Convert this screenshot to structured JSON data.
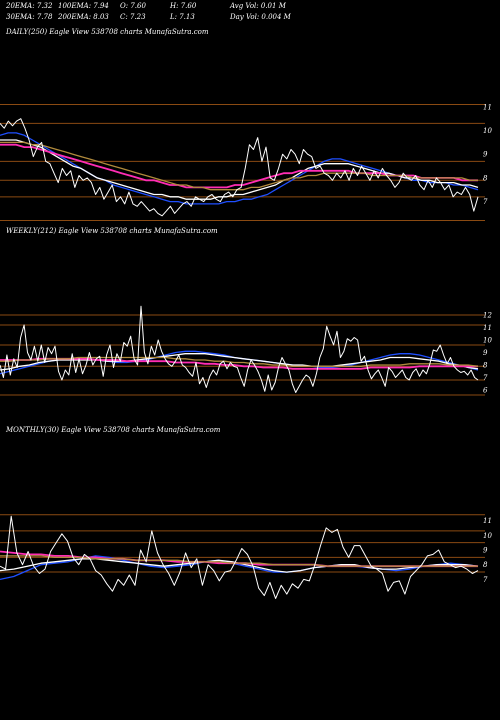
{
  "header": {
    "row1": [
      "20EMA: 7.32",
      "100EMA: 7.94",
      "O: 7.60",
      "H: 7.60",
      "Avg Vol: 0.01 M"
    ],
    "row2": [
      "30EMA: 7.78",
      "200EMA: 8.03",
      "C: 7.23",
      "L: 7.13",
      "Day Vol: 0.004  M"
    ]
  },
  "chart_data": [
    {
      "type": "line",
      "label": "DAILY(250) Eagle  View  538708  charts MunafaSutra.com",
      "ylim": [
        5.8,
        11.5
      ],
      "yticks": [
        7,
        8,
        9,
        10,
        11
      ],
      "grid_levels": [
        6.2,
        7.2,
        7.9,
        8.7,
        10.3,
        11.1
      ],
      "series": [
        {
          "color": "#ffffff",
          "values": [
            10.3,
            10.1,
            10.4,
            10.2,
            10.4,
            10.5,
            10.1,
            9.6,
            8.9,
            9.3,
            9.5,
            8.7,
            8.6,
            8.2,
            7.8,
            8.4,
            8.1,
            8.3,
            7.6,
            8.1,
            7.9,
            8.0,
            7.8,
            7.3,
            7.6,
            7.1,
            7.4,
            7.7,
            7.0,
            7.2,
            6.9,
            7.4,
            6.9,
            6.8,
            7.0,
            6.8,
            6.6,
            6.7,
            6.5,
            6.4,
            6.6,
            6.8,
            6.5,
            6.7,
            6.9,
            7.0,
            6.8,
            7.2,
            7.1,
            7.0,
            7.2,
            7.3,
            7.1,
            7.0,
            7.3,
            7.4,
            7.2,
            7.5,
            7.6,
            8.4,
            9.4,
            9.2,
            9.7,
            8.7,
            9.3,
            8.0,
            7.9,
            8.4,
            9.0,
            8.8,
            9.2,
            9.0,
            8.6,
            9.2,
            9.0,
            8.9,
            8.4,
            8.5,
            8.2,
            8.1,
            7.9,
            8.2,
            8.0,
            8.3,
            7.9,
            8.4,
            8.1,
            8.5,
            8.2,
            7.9,
            8.3,
            8.0,
            8.4,
            8.1,
            7.9,
            7.6,
            7.8,
            8.2,
            8.0,
            7.9,
            8.1,
            7.7,
            7.5,
            7.9,
            7.6,
            8.0,
            7.8,
            7.5,
            7.7,
            7.2,
            7.4,
            7.3,
            7.6,
            7.3,
            6.6,
            7.2
          ]
        },
        {
          "color": "#1f4fff",
          "values": [
            9.8,
            9.9,
            9.9,
            9.8,
            9.6,
            9.4,
            9.2,
            9.0,
            8.8,
            8.6,
            8.4,
            8.2,
            8.0,
            7.9,
            7.7,
            7.6,
            7.5,
            7.4,
            7.3,
            7.2,
            7.1,
            7.0,
            7.0,
            6.9,
            6.9,
            6.9,
            6.9,
            6.9,
            7.0,
            7.0,
            7.1,
            7.1,
            7.2,
            7.3,
            7.5,
            7.7,
            7.9,
            8.1,
            8.3,
            8.5,
            8.7,
            8.8,
            8.8,
            8.7,
            8.6,
            8.5,
            8.4,
            8.3,
            8.2,
            8.1,
            8.0,
            7.9,
            7.9,
            7.8,
            7.8,
            7.8,
            7.7,
            7.7,
            7.6,
            7.5
          ]
        },
        {
          "color": "#ffffff",
          "values": [
            9.6,
            9.6,
            9.6,
            9.5,
            9.4,
            9.3,
            9.1,
            8.9,
            8.7,
            8.5,
            8.4,
            8.2,
            8.0,
            7.9,
            7.8,
            7.7,
            7.6,
            7.5,
            7.4,
            7.3,
            7.3,
            7.2,
            7.2,
            7.1,
            7.1,
            7.1,
            7.1,
            7.2,
            7.2,
            7.3,
            7.3,
            7.4,
            7.5,
            7.6,
            7.7,
            7.9,
            8.0,
            8.2,
            8.4,
            8.5,
            8.6,
            8.6,
            8.6,
            8.6,
            8.5,
            8.4,
            8.3,
            8.2,
            8.2,
            8.1,
            8.0,
            8.0,
            7.9,
            7.9,
            7.8,
            7.8,
            7.8,
            7.7,
            7.7,
            7.6
          ]
        },
        {
          "color": "#ff2db4",
          "values": [
            9.4,
            9.4,
            9.4,
            9.3,
            9.3,
            9.2,
            9.1,
            9.0,
            8.9,
            8.8,
            8.7,
            8.6,
            8.5,
            8.4,
            8.3,
            8.2,
            8.1,
            8.0,
            7.9,
            7.9,
            7.8,
            7.7,
            7.7,
            7.6,
            7.6,
            7.6,
            7.6,
            7.6,
            7.6,
            7.7,
            7.7,
            7.8,
            7.9,
            8.0,
            8.1,
            8.2,
            8.2,
            8.3,
            8.3,
            8.3,
            8.3,
            8.3,
            8.3,
            8.3,
            8.2,
            8.2,
            8.2,
            8.2,
            8.1,
            8.1,
            8.1,
            8.1,
            8.0,
            8.0,
            8.0,
            8.0,
            8.0,
            7.9,
            7.9,
            7.9
          ]
        },
        {
          "color": "#b08a3c",
          "values": [
            9.5,
            9.5,
            9.5,
            9.5,
            9.4,
            9.4,
            9.3,
            9.2,
            9.1,
            9.0,
            8.9,
            8.8,
            8.7,
            8.6,
            8.5,
            8.4,
            8.3,
            8.2,
            8.1,
            8.0,
            7.9,
            7.8,
            7.7,
            7.7,
            7.6,
            7.6,
            7.5,
            7.5,
            7.5,
            7.5,
            7.5,
            7.6,
            7.6,
            7.7,
            7.8,
            7.9,
            8.0,
            8.0,
            8.1,
            8.1,
            8.2,
            8.2,
            8.2,
            8.2,
            8.2,
            8.2,
            8.1,
            8.1,
            8.1,
            8.1,
            8.1,
            8.0,
            8.0,
            8.0,
            8.0,
            8.0,
            8.0,
            8.0,
            7.9,
            7.9
          ]
        }
      ]
    },
    {
      "type": "line",
      "label": "WEEKLY(212) Eagle  View  538708  charts MunafaSutra.com",
      "ylim": [
        5.2,
        13.2
      ],
      "yticks": [
        6,
        7,
        8,
        9,
        10,
        11,
        12
      ],
      "grid_levels": [
        5.6,
        6.8,
        7.9,
        9.6,
        11.2,
        12.0
      ],
      "series": [
        {
          "color": "#ffffff",
          "values": [
            8.0,
            7.0,
            8.8,
            7.2,
            8.5,
            7.8,
            10.2,
            11.2,
            9.0,
            8.4,
            9.5,
            8.3,
            9.6,
            8.2,
            9.4,
            8.9,
            9.5,
            7.5,
            6.8,
            7.6,
            7.2,
            8.9,
            7.4,
            8.5,
            7.3,
            8.0,
            9.0,
            8.0,
            8.5,
            8.7,
            7.1,
            8.8,
            9.6,
            7.8,
            8.9,
            8.3,
            9.8,
            9.5,
            10.3,
            8.5,
            8.0,
            12.7,
            9.0,
            8.1,
            9.5,
            8.8,
            10.0,
            9.1,
            8.5,
            8.1,
            7.9,
            8.3,
            8.8,
            8.0,
            7.8,
            7.4,
            7.1,
            8.2,
            6.5,
            7.0,
            6.2,
            7.1,
            7.6,
            7.2,
            8.1,
            8.3,
            7.7,
            8.2,
            7.9,
            7.8,
            7.0,
            6.3,
            7.6,
            8.4,
            8.0,
            7.5,
            6.8,
            5.9,
            7.2,
            6.0,
            6.6,
            7.8,
            8.6,
            8.1,
            7.6,
            6.5,
            5.8,
            6.3,
            6.8,
            7.2,
            7.0,
            6.3,
            7.3,
            8.6,
            9.3,
            11.1,
            10.3,
            9.6,
            10.7,
            8.6,
            9.1,
            10.1,
            9.9,
            10.2,
            10.0,
            8.3,
            8.7,
            7.6,
            6.9,
            7.3,
            7.6,
            7.0,
            6.3,
            7.8,
            7.5,
            7.0,
            7.3,
            7.6,
            7.0,
            6.8,
            7.4,
            7.7,
            7.1,
            7.6,
            7.3,
            8.1,
            9.2,
            9.1,
            9.6,
            8.8,
            8.1,
            8.6,
            7.9,
            7.6,
            7.4,
            7.5,
            7.2,
            7.6,
            7.0,
            6.8
          ]
        },
        {
          "color": "#1f4fff",
          "values": [
            7.3,
            7.5,
            7.7,
            7.9,
            8.1,
            8.3,
            8.4,
            8.5,
            8.5,
            8.5,
            8.4,
            8.3,
            8.2,
            8.2,
            8.3,
            8.4,
            8.6,
            8.8,
            9.0,
            9.1,
            9.1,
            9.0,
            8.9,
            8.8,
            8.6,
            8.5,
            8.4,
            8.3,
            8.2,
            8.1,
            8.0,
            7.9,
            7.9,
            7.8,
            7.8,
            7.9,
            8.0,
            8.2,
            8.4,
            8.6,
            8.8,
            8.9,
            8.9,
            8.8,
            8.6,
            8.4,
            8.2,
            8.0,
            7.8,
            7.6
          ]
        },
        {
          "color": "#ffffff",
          "values": [
            7.6,
            7.7,
            7.9,
            8.0,
            8.2,
            8.3,
            8.4,
            8.4,
            8.4,
            8.4,
            8.4,
            8.3,
            8.3,
            8.3,
            8.4,
            8.5,
            8.6,
            8.7,
            8.8,
            8.9,
            8.9,
            8.9,
            8.8,
            8.7,
            8.6,
            8.5,
            8.4,
            8.3,
            8.2,
            8.1,
            8.0,
            8.0,
            7.9,
            7.9,
            7.9,
            8.0,
            8.1,
            8.2,
            8.3,
            8.4,
            8.6,
            8.6,
            8.6,
            8.5,
            8.4,
            8.3,
            8.1,
            8.0,
            7.8,
            7.7
          ]
        },
        {
          "color": "#ff2db4",
          "values": [
            8.4,
            8.4,
            8.4,
            8.4,
            8.5,
            8.5,
            8.5,
            8.5,
            8.5,
            8.5,
            8.4,
            8.4,
            8.4,
            8.3,
            8.3,
            8.3,
            8.3,
            8.3,
            8.2,
            8.2,
            8.2,
            8.1,
            8.1,
            8.0,
            8.0,
            7.9,
            7.9,
            7.8,
            7.8,
            7.8,
            7.7,
            7.7,
            7.7,
            7.7,
            7.7,
            7.7,
            7.7,
            7.7,
            7.8,
            7.8,
            7.8,
            7.8,
            7.8,
            7.9,
            7.9,
            7.9,
            7.9,
            7.9,
            7.9,
            7.9
          ]
        },
        {
          "color": "#b08a3c",
          "values": [
            8.3,
            8.3,
            8.4,
            8.4,
            8.4,
            8.5,
            8.5,
            8.5,
            8.6,
            8.6,
            8.6,
            8.6,
            8.6,
            8.6,
            8.6,
            8.6,
            8.6,
            8.6,
            8.5,
            8.5,
            8.4,
            8.4,
            8.3,
            8.3,
            8.2,
            8.2,
            8.1,
            8.1,
            8.0,
            8.0,
            7.9,
            7.9,
            7.9,
            7.9,
            7.9,
            7.9,
            7.9,
            7.9,
            8.0,
            8.0,
            8.0,
            8.0,
            8.1,
            8.1,
            8.1,
            8.1,
            8.0,
            8.0,
            8.0,
            7.9
          ]
        }
      ]
    },
    {
      "type": "line",
      "label": "MONTHLY(30) Eagle  View  538708  charts MunafaSutra.com",
      "ylim": [
        5.6,
        12.4
      ],
      "yticks": [
        7,
        8,
        9,
        10,
        11
      ],
      "grid_levels": [
        7.5,
        8.5,
        9.5,
        10.3,
        11.4
      ],
      "series": [
        {
          "color": "#ffffff",
          "values": [
            7.9,
            7.7,
            11.3,
            8.8,
            8.0,
            8.9,
            7.9,
            7.4,
            7.7,
            8.9,
            9.5,
            10.1,
            9.6,
            8.5,
            8.0,
            8.7,
            8.4,
            7.6,
            7.3,
            6.7,
            6.2,
            7.0,
            6.6,
            7.3,
            6.6,
            9.0,
            8.2,
            10.3,
            8.8,
            8.0,
            7.4,
            6.6,
            7.5,
            8.8,
            7.8,
            8.4,
            6.6,
            8.0,
            7.6,
            6.9,
            7.5,
            7.6,
            8.3,
            9.1,
            8.7,
            7.9,
            6.4,
            5.9,
            6.8,
            5.7,
            6.6,
            6.0,
            6.7,
            6.4,
            7.0,
            6.9,
            8.0,
            9.3,
            10.5,
            10.2,
            10.4,
            9.2,
            8.5,
            9.3,
            9.3,
            8.6,
            7.9,
            7.7,
            7.4,
            6.2,
            6.8,
            6.9,
            6.0,
            7.2,
            7.6,
            8.0,
            8.6,
            8.7,
            9.0,
            8.2,
            8.0,
            7.8,
            7.9,
            7.7,
            7.4,
            7.6
          ]
        },
        {
          "color": "#1f4fff",
          "values": [
            7.0,
            7.2,
            7.6,
            8.0,
            8.1,
            8.2,
            8.4,
            8.6,
            8.5,
            8.3,
            8.1,
            7.9,
            7.8,
            7.9,
            8.0,
            8.2,
            8.3,
            8.1,
            7.9,
            7.7,
            7.5,
            7.5,
            7.6,
            7.8,
            7.9,
            8.0,
            7.9,
            7.8,
            7.7,
            7.6,
            7.7,
            7.9,
            8.0,
            8.1,
            8.0,
            7.9
          ]
        },
        {
          "color": "#ffffff",
          "values": [
            7.6,
            7.7,
            7.9,
            8.1,
            8.2,
            8.3,
            8.4,
            8.4,
            8.3,
            8.2,
            8.1,
            8.0,
            7.9,
            8.0,
            8.1,
            8.2,
            8.3,
            8.2,
            8.0,
            7.8,
            7.6,
            7.5,
            7.6,
            7.8,
            7.9,
            8.0,
            8.0,
            7.8,
            7.7,
            7.7,
            7.8,
            7.9,
            8.0,
            8.0,
            8.0,
            7.9
          ]
        },
        {
          "color": "#ff2db4",
          "values": [
            8.9,
            8.8,
            8.7,
            8.7,
            8.6,
            8.6,
            8.5,
            8.5,
            8.4,
            8.4,
            8.3,
            8.3,
            8.3,
            8.2,
            8.2,
            8.2,
            8.1,
            8.1,
            8.1,
            8.0,
            8.0,
            8.0,
            8.0,
            8.0,
            7.9,
            7.9,
            7.9,
            7.9,
            7.9,
            7.9,
            7.9,
            7.9,
            7.9,
            7.9,
            7.9,
            7.9
          ]
        },
        {
          "color": "#b08a3c",
          "values": [
            8.6,
            8.6,
            8.6,
            8.6,
            8.5,
            8.5,
            8.5,
            8.4,
            8.4,
            8.4,
            8.3,
            8.3,
            8.3,
            8.3,
            8.2,
            8.2,
            8.2,
            8.1,
            8.1,
            8.1,
            8.0,
            8.0,
            8.0,
            8.0,
            7.9,
            7.9,
            7.9,
            7.9,
            7.9,
            7.9,
            7.9,
            7.9,
            7.9,
            7.9,
            7.9,
            7.9
          ]
        }
      ]
    }
  ]
}
